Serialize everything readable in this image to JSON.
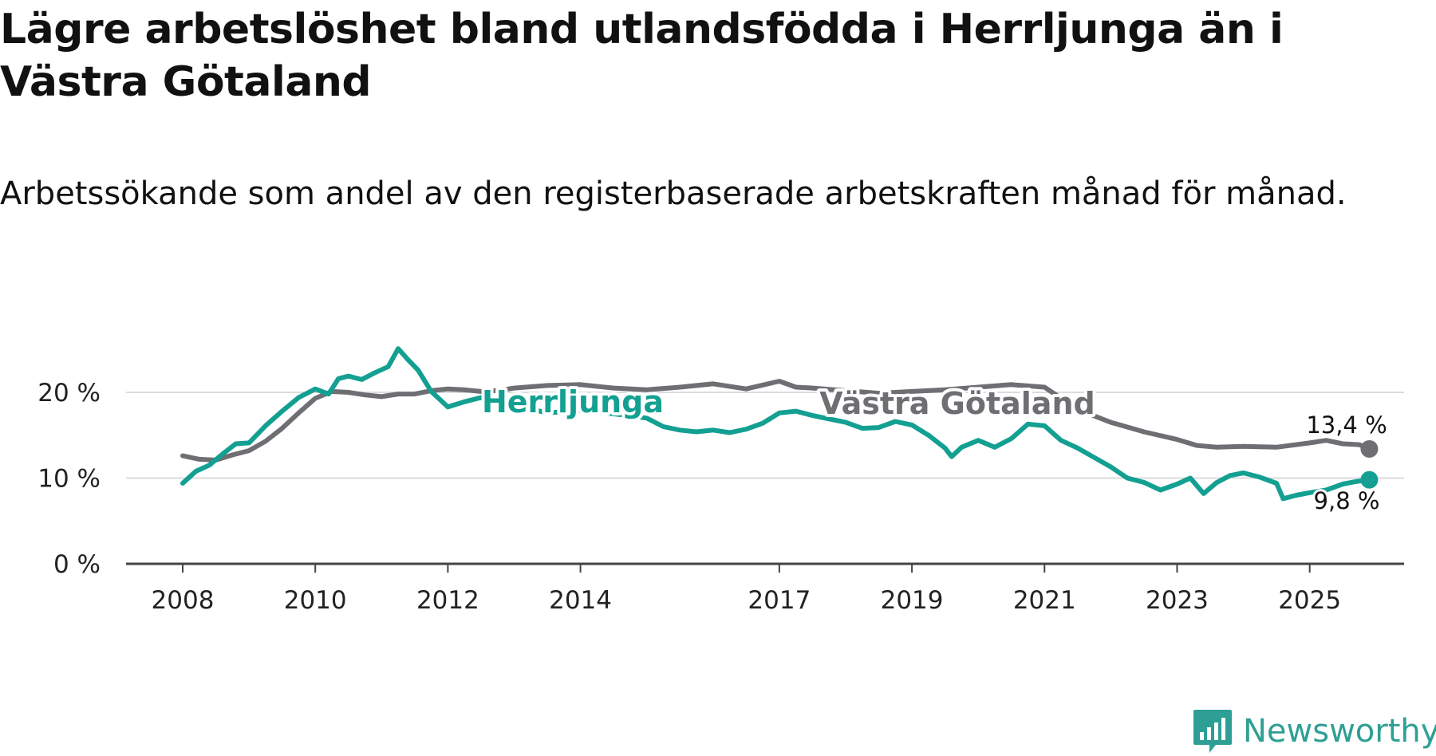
{
  "title": "Lägre arbetslöshet bland utlandsfödda i Herrljunga än i Västra Götaland",
  "subtitle": "Arbetssökande som andel av den registerbaserade arbetskraften månad för månad.",
  "brand": "Newsworthy",
  "colors": {
    "herrljunga": "#13a092",
    "vastra": "#6f6e73",
    "grid": "#dcdcdc",
    "axis": "#444444"
  },
  "chart_data": {
    "type": "line",
    "title": "Lägre arbetslöshet bland utlandsfödda i Herrljunga än i Västra Götaland",
    "xlabel": "",
    "ylabel": "",
    "ylim": [
      0,
      25
    ],
    "xlim": [
      2008.0,
      2026.4
    ],
    "y_ticks": [
      {
        "value": 0,
        "label": "0 %"
      },
      {
        "value": 10,
        "label": "10 %"
      },
      {
        "value": 20,
        "label": "20 %"
      }
    ],
    "x_ticks": [
      {
        "value": 2008,
        "label": "2008"
      },
      {
        "value": 2010,
        "label": "2010"
      },
      {
        "value": 2012,
        "label": "2012"
      },
      {
        "value": 2014,
        "label": "2014"
      },
      {
        "value": 2017,
        "label": "2017"
      },
      {
        "value": 2019,
        "label": "2019"
      },
      {
        "value": 2021,
        "label": "2021"
      },
      {
        "value": 2023,
        "label": "2023"
      },
      {
        "value": 2025,
        "label": "2025"
      }
    ],
    "series": [
      {
        "name": "Västra Götaland",
        "label": "Västra Götaland",
        "end_label": "13,4 %",
        "color_key": "vastra",
        "points": [
          [
            2008.0,
            12.6
          ],
          [
            2008.25,
            12.2
          ],
          [
            2008.5,
            12.1
          ],
          [
            2008.75,
            12.7
          ],
          [
            2009.0,
            13.2
          ],
          [
            2009.25,
            14.3
          ],
          [
            2009.5,
            15.8
          ],
          [
            2009.75,
            17.6
          ],
          [
            2010.0,
            19.3
          ],
          [
            2010.25,
            20.1
          ],
          [
            2010.5,
            20.0
          ],
          [
            2010.75,
            19.7
          ],
          [
            2011.0,
            19.5
          ],
          [
            2011.25,
            19.8
          ],
          [
            2011.5,
            19.8
          ],
          [
            2011.75,
            20.2
          ],
          [
            2012.0,
            20.4
          ],
          [
            2012.25,
            20.3
          ],
          [
            2012.5,
            20.1
          ],
          [
            2012.75,
            20.2
          ],
          [
            2013.0,
            20.5
          ],
          [
            2013.5,
            20.8
          ],
          [
            2014.0,
            20.9
          ],
          [
            2014.5,
            20.5
          ],
          [
            2015.0,
            20.3
          ],
          [
            2015.5,
            20.6
          ],
          [
            2016.0,
            21.0
          ],
          [
            2016.5,
            20.4
          ],
          [
            2017.0,
            21.3
          ],
          [
            2017.25,
            20.6
          ],
          [
            2017.5,
            20.5
          ],
          [
            2018.0,
            20.2
          ],
          [
            2018.5,
            19.9
          ],
          [
            2019.0,
            20.1
          ],
          [
            2019.5,
            20.3
          ],
          [
            2020.0,
            20.6
          ],
          [
            2020.5,
            20.9
          ],
          [
            2021.0,
            20.6
          ],
          [
            2021.5,
            18.0
          ],
          [
            2022.0,
            16.5
          ],
          [
            2022.5,
            15.4
          ],
          [
            2023.0,
            14.5
          ],
          [
            2023.3,
            13.8
          ],
          [
            2023.6,
            13.6
          ],
          [
            2024.0,
            13.7
          ],
          [
            2024.5,
            13.6
          ],
          [
            2025.0,
            14.1
          ],
          [
            2025.25,
            14.4
          ],
          [
            2025.5,
            14.0
          ],
          [
            2025.75,
            13.9
          ],
          [
            2025.9,
            13.4
          ]
        ]
      },
      {
        "name": "Herrljunga",
        "label": "Herrljunga",
        "end_label": "9,8 %",
        "color_key": "herrljunga",
        "points": [
          [
            2008.0,
            9.4
          ],
          [
            2008.2,
            10.8
          ],
          [
            2008.4,
            11.5
          ],
          [
            2008.6,
            12.8
          ],
          [
            2008.8,
            14.0
          ],
          [
            2009.0,
            14.1
          ],
          [
            2009.25,
            16.1
          ],
          [
            2009.5,
            17.8
          ],
          [
            2009.75,
            19.4
          ],
          [
            2010.0,
            20.4
          ],
          [
            2010.2,
            19.8
          ],
          [
            2010.35,
            21.6
          ],
          [
            2010.5,
            21.9
          ],
          [
            2010.7,
            21.5
          ],
          [
            2010.9,
            22.3
          ],
          [
            2011.1,
            23.0
          ],
          [
            2011.25,
            25.1
          ],
          [
            2011.4,
            23.8
          ],
          [
            2011.55,
            22.6
          ],
          [
            2011.75,
            20.1
          ],
          [
            2012.0,
            18.3
          ],
          [
            2012.25,
            18.9
          ],
          [
            2012.5,
            19.4
          ],
          [
            2012.75,
            18.9
          ],
          [
            2013.0,
            18.5
          ],
          [
            2013.5,
            17.6
          ],
          [
            2014.0,
            17.9
          ],
          [
            2014.5,
            17.5
          ],
          [
            2015.0,
            17.0
          ],
          [
            2015.25,
            16.0
          ],
          [
            2015.5,
            15.6
          ],
          [
            2015.75,
            15.4
          ],
          [
            2016.0,
            15.6
          ],
          [
            2016.25,
            15.3
          ],
          [
            2016.5,
            15.7
          ],
          [
            2016.75,
            16.4
          ],
          [
            2017.0,
            17.6
          ],
          [
            2017.25,
            17.8
          ],
          [
            2017.5,
            17.3
          ],
          [
            2017.75,
            16.9
          ],
          [
            2018.0,
            16.5
          ],
          [
            2018.25,
            15.8
          ],
          [
            2018.5,
            15.9
          ],
          [
            2018.75,
            16.6
          ],
          [
            2019.0,
            16.2
          ],
          [
            2019.25,
            15.0
          ],
          [
            2019.5,
            13.5
          ],
          [
            2019.6,
            12.5
          ],
          [
            2019.75,
            13.6
          ],
          [
            2020.0,
            14.4
          ],
          [
            2020.25,
            13.6
          ],
          [
            2020.5,
            14.6
          ],
          [
            2020.75,
            16.3
          ],
          [
            2021.0,
            16.1
          ],
          [
            2021.25,
            14.4
          ],
          [
            2021.5,
            13.5
          ],
          [
            2021.75,
            12.4
          ],
          [
            2022.0,
            11.3
          ],
          [
            2022.25,
            10.0
          ],
          [
            2022.5,
            9.5
          ],
          [
            2022.75,
            8.6
          ],
          [
            2023.0,
            9.3
          ],
          [
            2023.2,
            10.0
          ],
          [
            2023.4,
            8.2
          ],
          [
            2023.6,
            9.5
          ],
          [
            2023.8,
            10.3
          ],
          [
            2024.0,
            10.6
          ],
          [
            2024.25,
            10.1
          ],
          [
            2024.5,
            9.4
          ],
          [
            2024.6,
            7.6
          ],
          [
            2024.8,
            8.0
          ],
          [
            2025.0,
            8.3
          ],
          [
            2025.25,
            8.6
          ],
          [
            2025.5,
            9.3
          ],
          [
            2025.7,
            9.6
          ],
          [
            2025.9,
            9.8
          ]
        ]
      }
    ]
  }
}
